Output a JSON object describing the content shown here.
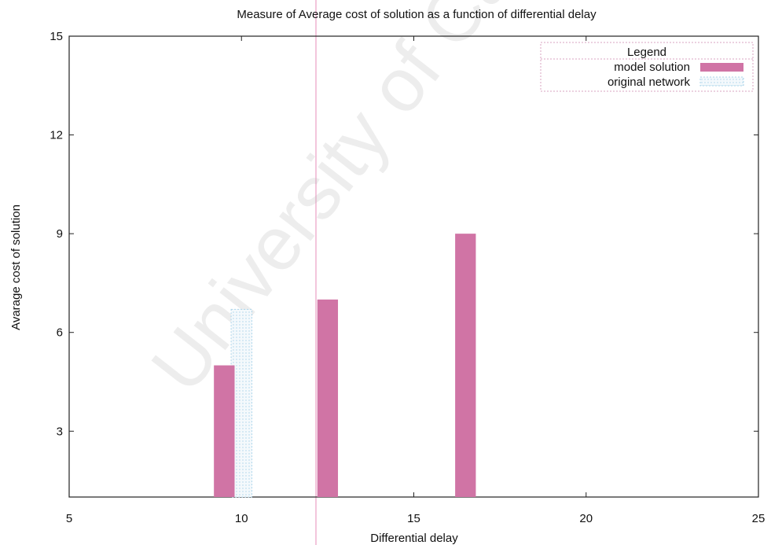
{
  "chart_data": {
    "type": "bar",
    "title": "Measure of Average cost of solution as a function of differential delay",
    "xlabel": "Differential delay",
    "ylabel": "Avarage cost of solution",
    "xlim": [
      5,
      25
    ],
    "ylim": [
      1,
      15
    ],
    "xticks": [
      5,
      10,
      15,
      20,
      25
    ],
    "yticks": [
      3,
      6,
      9,
      12,
      15
    ],
    "legend": {
      "title": "Legend",
      "placement": "top-right"
    },
    "grid": false,
    "series": [
      {
        "name": "model solution",
        "color": "#d074a5",
        "fill": "solid",
        "points": [
          {
            "x": 9.5,
            "y": 5.0
          },
          {
            "x": 12.5,
            "y": 7.0
          },
          {
            "x": 16.5,
            "y": 9.0
          }
        ]
      },
      {
        "name": "original network",
        "color": "#a9d3ea",
        "fill": "pattern",
        "points": [
          {
            "x": 10.0,
            "y": 6.7
          }
        ]
      }
    ]
  },
  "watermark": {
    "text": "University of Cape",
    "color": "#b7b7b7"
  }
}
